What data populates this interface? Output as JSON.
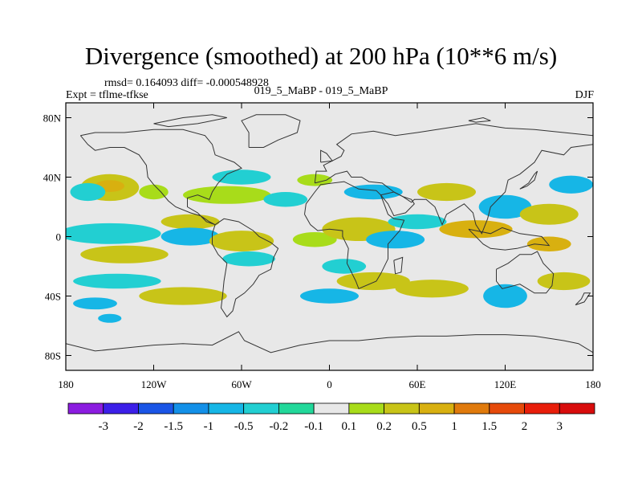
{
  "header": {
    "title": "Divergence (smoothed) at 200 hPa (10**6 m/s)",
    "stats": "rmsd= 0.164093 diff= -0.000548928",
    "expt": "Expt = tflme-tfkse",
    "case": "019_5_MaBP - 019_5_MaBP",
    "season": "DJF"
  },
  "chart_data": {
    "type": "heatmap",
    "title": "Divergence (smoothed) at 200 hPa (10**6 m/s)",
    "xlabel": "",
    "ylabel": "",
    "xlim": [
      -180,
      180
    ],
    "ylim": [
      -90,
      90
    ],
    "x_ticks": [
      {
        "value": -180,
        "label": "180"
      },
      {
        "value": -120,
        "label": "120W"
      },
      {
        "value": -60,
        "label": "60W"
      },
      {
        "value": 0,
        "label": "0"
      },
      {
        "value": 60,
        "label": "60E"
      },
      {
        "value": 120,
        "label": "120E"
      },
      {
        "value": 180,
        "label": "180"
      }
    ],
    "y_ticks": [
      {
        "value": 80,
        "label": "80N"
      },
      {
        "value": 40,
        "label": "40N"
      },
      {
        "value": 0,
        "label": "0"
      },
      {
        "value": -40,
        "label": "40S"
      },
      {
        "value": -80,
        "label": "80S"
      }
    ],
    "levels": [
      -3,
      -2,
      -1.5,
      -1,
      -0.5,
      -0.2,
      -0.1,
      0.1,
      0.2,
      0.5,
      1,
      1.5,
      2,
      3
    ],
    "level_labels": [
      "-3",
      "-2",
      "-1.5",
      "-1",
      "-0.5",
      "-0.2",
      "-0.1",
      "0.1",
      "0.2",
      "0.5",
      "1",
      "1.5",
      "2",
      "3"
    ],
    "colors": [
      "#8b1ce0",
      "#3c1fe8",
      "#1a55e6",
      "#1390e8",
      "#16b6e6",
      "#22cfd2",
      "#22d89a",
      "#e8e8e8",
      "#a8dc1a",
      "#c8c418",
      "#d8b010",
      "#e07a0c",
      "#e64a0a",
      "#e81e0a",
      "#d80c0c"
    ],
    "background_color": "#e8e8e8",
    "blobs": [
      {
        "lon": -150,
        "lat": 33,
        "rlon": 20,
        "rlat": 9,
        "bin": 9
      },
      {
        "lon": -150,
        "lat": 34,
        "rlon": 10,
        "rlat": 4,
        "bin": 10
      },
      {
        "lon": -165,
        "lat": 30,
        "rlon": 12,
        "rlat": 6,
        "bin": 5
      },
      {
        "lon": -120,
        "lat": 30,
        "rlon": 10,
        "rlat": 5,
        "bin": 8
      },
      {
        "lon": -95,
        "lat": 10,
        "rlon": 20,
        "rlat": 5,
        "bin": 9
      },
      {
        "lon": -70,
        "lat": 28,
        "rlon": 30,
        "rlat": 6,
        "bin": 8
      },
      {
        "lon": -60,
        "lat": 40,
        "rlon": 20,
        "rlat": 5,
        "bin": 5
      },
      {
        "lon": -30,
        "lat": 25,
        "rlon": 15,
        "rlat": 5,
        "bin": 5
      },
      {
        "lon": -150,
        "lat": 2,
        "rlon": 35,
        "rlat": 7,
        "bin": 5
      },
      {
        "lon": -95,
        "lat": 0,
        "rlon": 20,
        "rlat": 6,
        "bin": 4
      },
      {
        "lon": -140,
        "lat": -12,
        "rlon": 30,
        "rlat": 6,
        "bin": 9
      },
      {
        "lon": -60,
        "lat": -3,
        "rlon": 22,
        "rlat": 7,
        "bin": 9
      },
      {
        "lon": -55,
        "lat": -15,
        "rlon": 18,
        "rlat": 5,
        "bin": 5
      },
      {
        "lon": -10,
        "lat": -2,
        "rlon": 15,
        "rlat": 5,
        "bin": 8
      },
      {
        "lon": 20,
        "lat": 5,
        "rlon": 25,
        "rlat": 8,
        "bin": 9
      },
      {
        "lon": 45,
        "lat": -2,
        "rlon": 20,
        "rlat": 6,
        "bin": 4
      },
      {
        "lon": 10,
        "lat": -20,
        "rlon": 15,
        "rlat": 5,
        "bin": 5
      },
      {
        "lon": 30,
        "lat": -30,
        "rlon": 25,
        "rlat": 6,
        "bin": 9
      },
      {
        "lon": -145,
        "lat": -30,
        "rlon": 30,
        "rlat": 5,
        "bin": 5
      },
      {
        "lon": -100,
        "lat": -40,
        "rlon": 30,
        "rlat": 6,
        "bin": 9
      },
      {
        "lon": 0,
        "lat": -40,
        "rlon": 20,
        "rlat": 5,
        "bin": 4
      },
      {
        "lon": 70,
        "lat": -35,
        "rlon": 25,
        "rlat": 6,
        "bin": 9
      },
      {
        "lon": 120,
        "lat": -40,
        "rlon": 15,
        "rlat": 8,
        "bin": 4
      },
      {
        "lon": 160,
        "lat": -30,
        "rlon": 18,
        "rlat": 6,
        "bin": 9
      },
      {
        "lon": 80,
        "lat": 30,
        "rlon": 20,
        "rlat": 6,
        "bin": 9
      },
      {
        "lon": 120,
        "lat": 20,
        "rlon": 18,
        "rlat": 8,
        "bin": 4
      },
      {
        "lon": 100,
        "lat": 5,
        "rlon": 25,
        "rlat": 6,
        "bin": 10
      },
      {
        "lon": 150,
        "lat": 15,
        "rlon": 20,
        "rlat": 7,
        "bin": 9
      },
      {
        "lon": 165,
        "lat": 35,
        "rlon": 15,
        "rlat": 6,
        "bin": 4
      },
      {
        "lon": 60,
        "lat": 10,
        "rlon": 20,
        "rlat": 5,
        "bin": 5
      },
      {
        "lon": -10,
        "lat": 38,
        "rlon": 12,
        "rlat": 4,
        "bin": 8
      },
      {
        "lon": 30,
        "lat": 30,
        "rlon": 20,
        "rlat": 5,
        "bin": 4
      },
      {
        "lon": 150,
        "lat": -5,
        "rlon": 15,
        "rlat": 5,
        "bin": 10
      },
      {
        "lon": -160,
        "lat": -45,
        "rlon": 15,
        "rlat": 4,
        "bin": 4
      },
      {
        "lon": -150,
        "lat": -55,
        "rlon": 8,
        "rlat": 3,
        "bin": 4
      }
    ]
  }
}
